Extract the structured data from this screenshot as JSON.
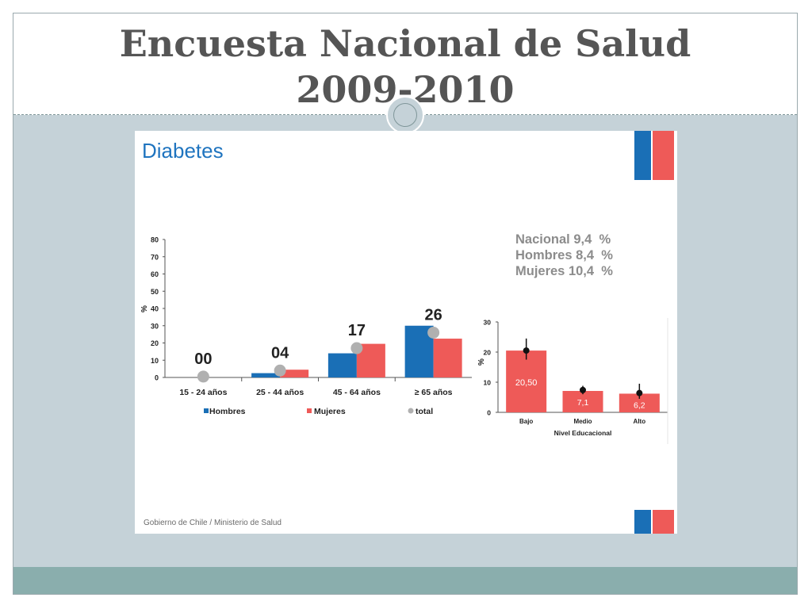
{
  "slide": {
    "title_line1": "Encuesta Nacional de Salud",
    "title_line2": "2009-2010"
  },
  "panel": {
    "heading": "Diabetes",
    "footer": "Gobierno de Chile / Ministerio de Salud",
    "summary": [
      {
        "label": "Nacional",
        "value": "9,4",
        "unit": "%"
      },
      {
        "label": "Hombres",
        "value": "8,4",
        "unit": "%"
      },
      {
        "label": "Mujeres",
        "value": "10,4",
        "unit": "%"
      }
    ]
  },
  "colors": {
    "hombres": "#1a6fb6",
    "mujeres": "#ee5a58",
    "total": "#b0b0b0",
    "heading": "#1f74bf"
  },
  "chart_data": [
    {
      "type": "bar",
      "ylabel": "%",
      "ylim": [
        0,
        80
      ],
      "yticks": [
        0,
        10,
        20,
        30,
        40,
        50,
        60,
        70,
        80
      ],
      "categories": [
        "15 - 24 años",
        "25 - 44 años",
        "45 - 64 años",
        "≥ 65 años"
      ],
      "series": [
        {
          "name": "Hombres",
          "values": [
            0,
            2.5,
            14,
            30
          ]
        },
        {
          "name": "Mujeres",
          "values": [
            0,
            4.5,
            19.5,
            22.5
          ]
        }
      ],
      "total": {
        "name": "total",
        "values": [
          0.5,
          4,
          17,
          26
        ]
      },
      "total_labels": [
        "00",
        "04",
        "17",
        "26"
      ],
      "legend": "bottom"
    },
    {
      "type": "bar",
      "ylabel": "%",
      "xlabel": "Nivel Educacional",
      "ylim": [
        0,
        30
      ],
      "yticks": [
        0,
        10,
        20,
        30
      ],
      "categories": [
        "Bajo",
        "Medio",
        "Alto"
      ],
      "values": [
        20.5,
        7.1,
        6.2
      ],
      "value_labels": [
        "20,50",
        "7,1",
        "6,2"
      ],
      "points": [
        20.5,
        7.4,
        6.4
      ],
      "error_low": [
        17.5,
        6.0,
        4.5
      ],
      "error_high": [
        24.5,
        8.8,
        9.5
      ]
    }
  ]
}
